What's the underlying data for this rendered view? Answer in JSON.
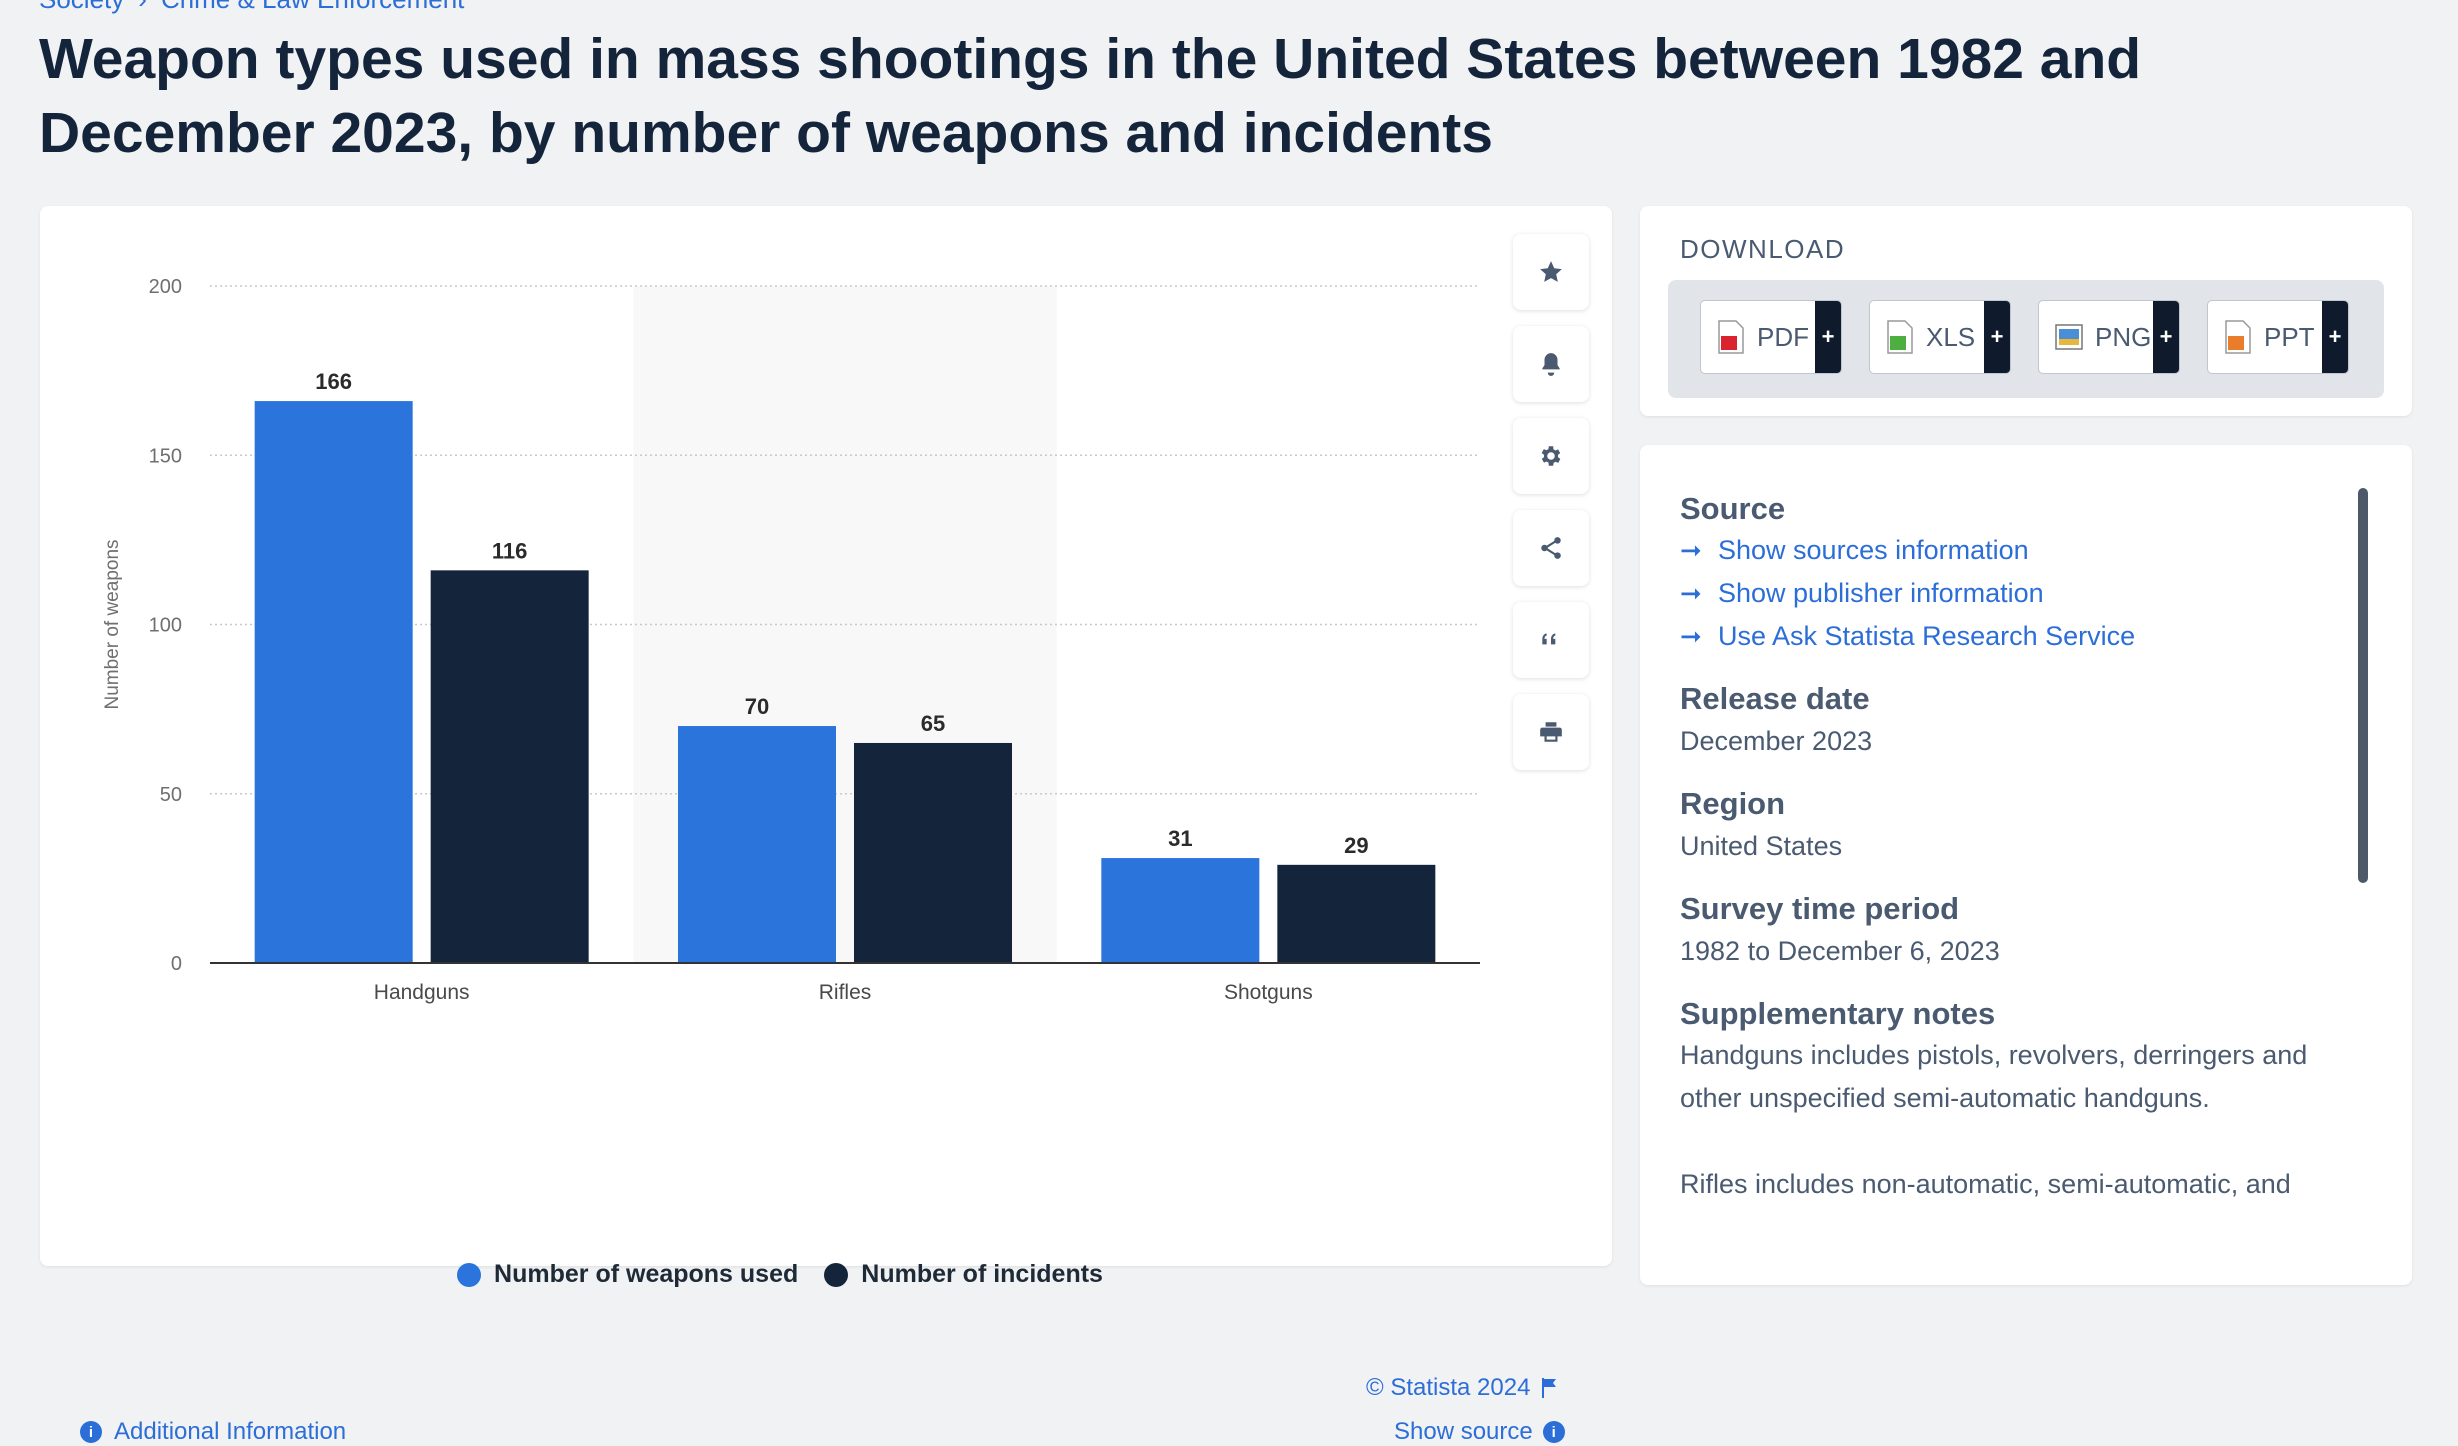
{
  "breadcrumb": {
    "part1": "Society",
    "part2": "Crime & Law Enforcement"
  },
  "title": "Weapon types used in mass shootings in the United States between 1982 and December 2023, by number of weapons and incidents",
  "colors": {
    "weapons": "#2a74dc",
    "incidents": "#13243b",
    "link": "#2c6ed8"
  },
  "chart_data": {
    "type": "bar",
    "categories": [
      "Handguns",
      "Rifles",
      "Shotguns"
    ],
    "series": [
      {
        "name": "Number of weapons used",
        "values": [
          166,
          70,
          31
        ]
      },
      {
        "name": "Number of incidents",
        "values": [
          116,
          65,
          29
        ]
      }
    ],
    "ylabel": "Number of weapons",
    "xlabel": "",
    "ylim": [
      0,
      200
    ],
    "yticks": [
      0,
      50,
      100,
      150,
      200
    ],
    "grid": true,
    "legend": "bottom-center"
  },
  "toolbar": {
    "icons": [
      "star-icon",
      "bell-icon",
      "gear-icon",
      "share-icon",
      "quote-icon",
      "print-icon"
    ]
  },
  "footer": {
    "copyright": "© Statista 2024",
    "additional": "Additional Information",
    "show_source": "Show source"
  },
  "download": {
    "title": "DOWNLOAD",
    "buttons": [
      "PDF",
      "XLS",
      "PNG",
      "PPT"
    ]
  },
  "details": {
    "source_h": "Source",
    "links": [
      "Show sources information",
      "Show publisher information",
      "Use Ask Statista Research Service"
    ],
    "release_h": "Release date",
    "release": "December 2023",
    "region_h": "Region",
    "region": "United States",
    "period_h": "Survey time period",
    "period": "1982 to December 6, 2023",
    "notes_h": "Supplementary notes",
    "note1": "Handguns includes pistols, revolvers, derringers and other unspecified semi-automatic handguns.",
    "note2": "Rifles includes non-automatic, semi-automatic, and"
  }
}
